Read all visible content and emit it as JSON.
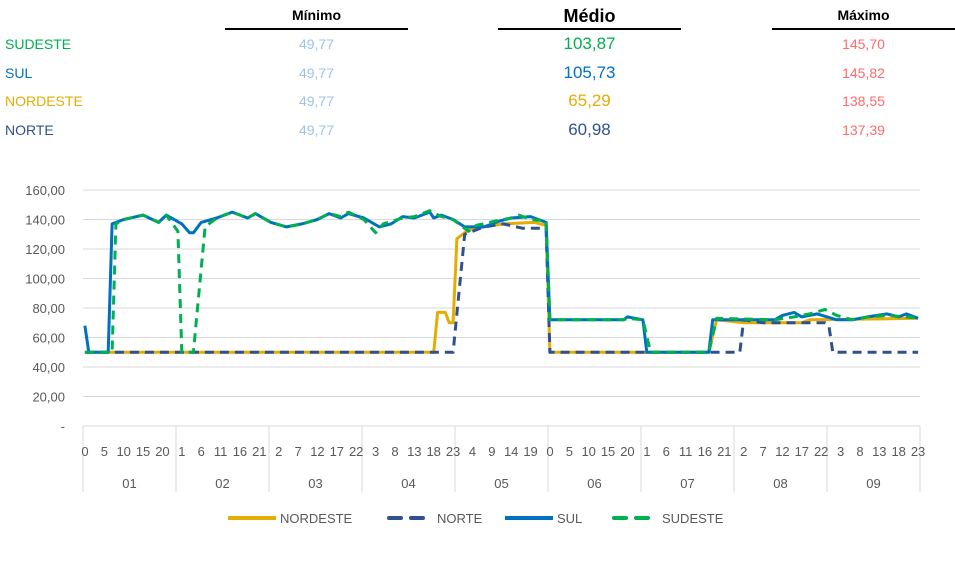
{
  "summary": {
    "headers": {
      "min": "Mínimo",
      "avg": "Médio",
      "max": "Máximo"
    },
    "rows": [
      {
        "name": "SUDESTE",
        "color": "#00B050",
        "min": "49,77",
        "avg": "103,87",
        "max": "145,70"
      },
      {
        "name": "SUL",
        "color": "#0070C0",
        "min": "49,77",
        "avg": "105,73",
        "max": "145,82"
      },
      {
        "name": "NORDESTE",
        "color": "#E6AC00",
        "min": "49,77",
        "avg": "65,29",
        "max": "138,55"
      },
      {
        "name": "NORTE",
        "color": "#2F528F",
        "min": "49,77",
        "avg": "60,98",
        "max": "137,39"
      }
    ],
    "min_color": "#9DC3E6",
    "max_color": "#FF6B6B"
  },
  "chart_data": {
    "type": "line",
    "title": "",
    "xlabel": "",
    "ylabel": "",
    "ylim": [
      0,
      160
    ],
    "yticks": [
      "-",
      "20,00",
      "40,00",
      "60,00",
      "80,00",
      "100,00",
      "120,00",
      "140,00",
      "160,00"
    ],
    "hours_per_group": 24,
    "groups": [
      "01",
      "02",
      "03",
      "04",
      "05",
      "06",
      "07",
      "08",
      "09"
    ],
    "hour_tick_step": 5,
    "grid": true,
    "legend_position": "bottom",
    "point_format": "[hour_index, value] breakpoints, linear between",
    "series": [
      {
        "name": "NORDESTE",
        "color": "#E6AC00",
        "dash": false,
        "points": [
          [
            0,
            50
          ],
          [
            90,
            50
          ],
          [
            91,
            77
          ],
          [
            93,
            77
          ],
          [
            94,
            70
          ],
          [
            95,
            70
          ],
          [
            96,
            127
          ],
          [
            99,
            133
          ],
          [
            103,
            135
          ],
          [
            108,
            137
          ],
          [
            116,
            138
          ],
          [
            119,
            136
          ],
          [
            120,
            50
          ],
          [
            161,
            50
          ],
          [
            163,
            72
          ],
          [
            170,
            70
          ],
          [
            185,
            70
          ],
          [
            187,
            72
          ],
          [
            215,
            73
          ]
        ]
      },
      {
        "name": "NORTE",
        "color": "#2F528F",
        "dash": true,
        "points": [
          [
            0,
            50
          ],
          [
            95,
            50
          ],
          [
            98,
            130
          ],
          [
            103,
            135
          ],
          [
            108,
            137
          ],
          [
            113,
            134
          ],
          [
            119,
            134
          ],
          [
            120,
            50
          ],
          [
            169,
            50
          ],
          [
            170,
            72
          ],
          [
            175,
            70
          ],
          [
            191,
            70
          ],
          [
            192,
            68
          ],
          [
            193,
            50
          ],
          [
            215,
            50
          ]
        ]
      },
      {
        "name": "SUL",
        "color": "#0070C0",
        "dash": false,
        "points": [
          [
            0,
            68
          ],
          [
            1,
            50
          ],
          [
            6,
            50
          ],
          [
            7,
            137
          ],
          [
            10,
            140
          ],
          [
            15,
            143
          ],
          [
            19,
            138
          ],
          [
            21,
            143
          ],
          [
            25,
            137
          ],
          [
            27,
            131
          ],
          [
            28,
            131
          ],
          [
            30,
            138
          ],
          [
            34,
            141
          ],
          [
            38,
            145
          ],
          [
            42,
            141
          ],
          [
            44,
            144
          ],
          [
            48,
            138
          ],
          [
            52,
            135
          ],
          [
            56,
            137
          ],
          [
            60,
            140
          ],
          [
            63,
            144
          ],
          [
            66,
            141
          ],
          [
            68,
            144
          ],
          [
            72,
            141
          ],
          [
            76,
            135
          ],
          [
            79,
            137
          ],
          [
            82,
            142
          ],
          [
            85,
            141
          ],
          [
            89,
            145
          ],
          [
            90,
            141
          ],
          [
            92,
            143
          ],
          [
            95,
            140
          ],
          [
            98,
            135
          ],
          [
            103,
            135
          ],
          [
            107,
            139
          ],
          [
            110,
            141
          ],
          [
            115,
            142
          ],
          [
            119,
            138
          ],
          [
            120,
            72
          ],
          [
            139,
            72
          ],
          [
            140,
            74
          ],
          [
            144,
            72
          ],
          [
            145,
            50
          ],
          [
            161,
            50
          ],
          [
            162,
            72
          ],
          [
            178,
            72
          ],
          [
            180,
            75
          ],
          [
            183,
            77
          ],
          [
            185,
            74
          ],
          [
            189,
            76
          ],
          [
            194,
            72
          ],
          [
            198,
            72
          ],
          [
            202,
            74
          ],
          [
            207,
            76
          ],
          [
            210,
            74
          ],
          [
            212,
            76
          ],
          [
            215,
            73
          ]
        ]
      },
      {
        "name": "SUDESTE",
        "color": "#00B050",
        "dash": true,
        "points": [
          [
            0,
            50
          ],
          [
            7,
            50
          ],
          [
            8,
            137
          ],
          [
            10,
            140
          ],
          [
            15,
            143
          ],
          [
            19,
            138
          ],
          [
            21,
            143
          ],
          [
            24,
            132
          ],
          [
            25,
            50
          ],
          [
            28,
            50
          ],
          [
            31,
            135
          ],
          [
            34,
            141
          ],
          [
            38,
            145
          ],
          [
            42,
            141
          ],
          [
            44,
            144
          ],
          [
            48,
            138
          ],
          [
            52,
            135
          ],
          [
            56,
            137
          ],
          [
            60,
            140
          ],
          [
            63,
            144
          ],
          [
            66,
            142
          ],
          [
            68,
            145
          ],
          [
            72,
            140
          ],
          [
            75,
            131
          ],
          [
            77,
            137
          ],
          [
            82,
            141
          ],
          [
            85,
            142
          ],
          [
            89,
            146
          ],
          [
            92,
            142
          ],
          [
            95,
            140
          ],
          [
            97,
            136
          ],
          [
            99,
            132
          ],
          [
            101,
            136
          ],
          [
            106,
            139
          ],
          [
            110,
            141
          ],
          [
            112,
            143
          ],
          [
            115,
            140
          ],
          [
            119,
            139
          ],
          [
            120,
            72
          ],
          [
            139,
            72
          ],
          [
            140,
            73
          ],
          [
            144,
            72
          ],
          [
            146,
            50
          ],
          [
            161,
            50
          ],
          [
            163,
            73
          ],
          [
            178,
            72
          ],
          [
            183,
            74
          ],
          [
            187,
            76
          ],
          [
            191,
            79
          ],
          [
            194,
            75
          ],
          [
            198,
            72
          ],
          [
            202,
            74
          ],
          [
            207,
            75
          ],
          [
            212,
            74
          ],
          [
            215,
            73
          ]
        ]
      }
    ]
  }
}
